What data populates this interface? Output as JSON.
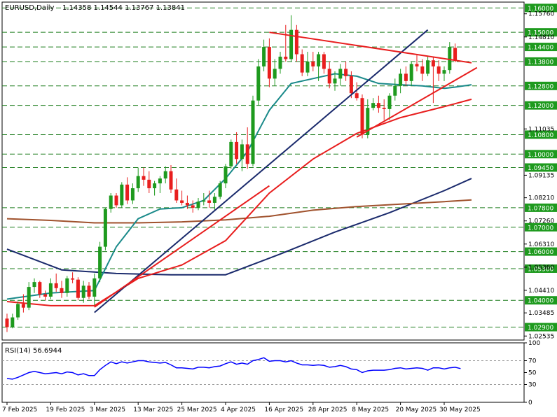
{
  "header": {
    "symbol": "EURUSD,Daily",
    "ohlc": "1.14358 1.14544 1.13767 1.13841"
  },
  "rsi_label": "RSI(14) 56.6944",
  "chart_data": [
    {
      "type": "candlestick",
      "title": "EURUSD,Daily",
      "ylim": [
        1.0237,
        1.1624
      ],
      "grid": false,
      "x_labels": [
        "7 Feb 2025",
        "19 Feb 2025",
        "3 Mar 2025",
        "13 Mar 2025",
        "25 Mar 2025",
        "4 Apr 2025",
        "16 Apr 2025",
        "28 Apr 2025",
        "8 May 2025",
        "20 May 2025",
        "30 May 2025"
      ],
      "x_label_bar_index": [
        0,
        8,
        16,
        24,
        32,
        40,
        48,
        56,
        64,
        72,
        80
      ],
      "y_tick_labels": [
        "1.15760",
        "1.14810",
        "1.11035",
        "1.09135",
        "1.08210",
        "1.07260",
        "1.06310",
        "1.05360",
        "1.04410",
        "1.03485",
        "1.02535"
      ],
      "y_tick_values": [
        1.1576,
        1.1481,
        1.11035,
        1.09135,
        1.0821,
        1.0726,
        1.0631,
        1.0536,
        1.0441,
        1.03485,
        1.02535
      ],
      "horizontal_levels": [
        {
          "label": "1.16000",
          "value": 1.16
        },
        {
          "label": "1.15000",
          "value": 1.15
        },
        {
          "label": "1.14400",
          "value": 1.144
        },
        {
          "label": "1.13800",
          "value": 1.138
        },
        {
          "label": "1.12800",
          "value": 1.128
        },
        {
          "label": "1.12000",
          "value": 1.12
        },
        {
          "label": "1.10800",
          "value": 1.108
        },
        {
          "label": "1.10000",
          "value": 1.1
        },
        {
          "label": "1.09450",
          "value": 1.0945
        },
        {
          "label": "1.07800",
          "value": 1.078
        },
        {
          "label": "1.07000",
          "value": 1.07
        },
        {
          "label": "1.06000",
          "value": 1.06
        },
        {
          "label": "1.05300",
          "value": 1.053
        },
        {
          "label": "1.04000",
          "value": 1.04
        },
        {
          "label": "1.02900",
          "value": 1.029
        }
      ],
      "candles": [
        [
          1.0325,
          1.0345,
          1.027,
          1.029
        ],
        [
          1.029,
          1.0345,
          1.0285,
          1.033
        ],
        [
          1.033,
          1.0395,
          1.032,
          1.0385
        ],
        [
          1.0385,
          1.0425,
          1.035,
          1.037
        ],
        [
          1.037,
          1.0475,
          1.036,
          1.0455
        ],
        [
          1.0455,
          1.049,
          1.043,
          1.0475
        ],
        [
          1.0475,
          1.048,
          1.041,
          1.0425
        ],
        [
          1.0425,
          1.044,
          1.04,
          1.0415
        ],
        [
          1.0415,
          1.049,
          1.0405,
          1.047
        ],
        [
          1.047,
          1.051,
          1.0435,
          1.045
        ],
        [
          1.045,
          1.048,
          1.041,
          1.043
        ],
        [
          1.043,
          1.05,
          1.0415,
          1.049
        ],
        [
          1.049,
          1.0515,
          1.047,
          1.0485
        ],
        [
          1.0485,
          1.0495,
          1.04,
          1.041
        ],
        [
          1.041,
          1.048,
          1.039,
          1.046
        ],
        [
          1.046,
          1.0475,
          1.0405,
          1.0415
        ],
        [
          1.0415,
          1.051,
          1.038,
          1.049
        ],
        [
          1.049,
          1.064,
          1.0475,
          1.062
        ],
        [
          1.062,
          1.078,
          1.0605,
          1.0775
        ],
        [
          1.0775,
          1.084,
          1.076,
          1.083
        ],
        [
          1.083,
          1.084,
          1.078,
          1.079
        ],
        [
          1.079,
          1.0885,
          1.078,
          1.0875
        ],
        [
          1.0875,
          1.0905,
          1.0795,
          1.081
        ],
        [
          1.081,
          1.088,
          1.0795,
          1.086
        ],
        [
          1.086,
          1.0945,
          1.0845,
          1.091
        ],
        [
          1.091,
          1.0945,
          1.087,
          1.0895
        ],
        [
          1.0895,
          1.093,
          1.084,
          1.086
        ],
        [
          1.086,
          1.089,
          1.083,
          1.088
        ],
        [
          1.088,
          1.091,
          1.084,
          1.09
        ],
        [
          1.09,
          1.095,
          1.088,
          1.093
        ],
        [
          1.093,
          1.0955,
          1.084,
          1.0855
        ],
        [
          1.0855,
          1.09,
          1.08,
          1.081
        ],
        [
          1.081,
          1.085,
          1.079,
          1.08
        ],
        [
          1.08,
          1.083,
          1.0775,
          1.079
        ],
        [
          1.079,
          1.081,
          1.076,
          1.078
        ],
        [
          1.078,
          1.082,
          1.077,
          1.0805
        ],
        [
          1.0805,
          1.084,
          1.079,
          1.081
        ],
        [
          1.081,
          1.085,
          1.078,
          1.08
        ],
        [
          1.08,
          1.084,
          1.077,
          1.0825
        ],
        [
          1.0825,
          1.089,
          1.0815,
          1.088
        ],
        [
          1.088,
          1.096,
          1.086,
          1.095
        ],
        [
          1.095,
          1.106,
          1.094,
          1.105
        ],
        [
          1.105,
          1.109,
          1.096,
          1.098
        ],
        [
          1.098,
          1.106,
          1.093,
          1.104
        ],
        [
          1.104,
          1.111,
          1.094,
          1.096
        ],
        [
          1.096,
          1.124,
          1.095,
          1.122
        ],
        [
          1.122,
          1.139,
          1.12,
          1.136
        ],
        [
          1.136,
          1.147,
          1.134,
          1.144
        ],
        [
          1.144,
          1.1475,
          1.1275,
          1.131
        ],
        [
          1.131,
          1.139,
          1.128,
          1.135
        ],
        [
          1.135,
          1.142,
          1.133,
          1.14
        ],
        [
          1.14,
          1.153,
          1.138,
          1.139
        ],
        [
          1.139,
          1.157,
          1.138,
          1.151
        ],
        [
          1.151,
          1.153,
          1.138,
          1.141
        ],
        [
          1.141,
          1.143,
          1.132,
          1.1335
        ],
        [
          1.1335,
          1.142,
          1.132,
          1.138
        ],
        [
          1.138,
          1.142,
          1.134,
          1.136
        ],
        [
          1.136,
          1.142,
          1.13,
          1.141
        ],
        [
          1.141,
          1.142,
          1.133,
          1.135
        ],
        [
          1.135,
          1.138,
          1.127,
          1.129
        ],
        [
          1.129,
          1.134,
          1.126,
          1.131
        ],
        [
          1.131,
          1.137,
          1.128,
          1.135
        ],
        [
          1.135,
          1.138,
          1.13,
          1.132
        ],
        [
          1.132,
          1.134,
          1.123,
          1.125
        ],
        [
          1.125,
          1.1295,
          1.122,
          1.123
        ],
        [
          1.123,
          1.1245,
          1.1065,
          1.108
        ],
        [
          1.108,
          1.1225,
          1.1065,
          1.119
        ],
        [
          1.119,
          1.123,
          1.118,
          1.121
        ],
        [
          1.121,
          1.124,
          1.117,
          1.119
        ],
        [
          1.119,
          1.1225,
          1.114,
          1.1185
        ],
        [
          1.1185,
          1.125,
          1.114,
          1.124
        ],
        [
          1.124,
          1.131,
          1.122,
          1.128
        ],
        [
          1.128,
          1.135,
          1.125,
          1.133
        ],
        [
          1.133,
          1.136,
          1.128,
          1.13
        ],
        [
          1.13,
          1.138,
          1.128,
          1.137
        ],
        [
          1.137,
          1.141,
          1.134,
          1.136
        ],
        [
          1.136,
          1.139,
          1.13,
          1.133
        ],
        [
          1.133,
          1.14,
          1.132,
          1.1385
        ],
        [
          1.1385,
          1.14,
          1.121,
          1.136
        ],
        [
          1.136,
          1.1385,
          1.13,
          1.133
        ],
        [
          1.133,
          1.136,
          1.13,
          1.1345
        ],
        [
          1.1345,
          1.146,
          1.133,
          1.144
        ],
        [
          1.1436,
          1.1454,
          1.1377,
          1.1384
        ]
      ],
      "series": [
        {
          "name": "",
          "color": "#1a2a6c",
          "x": [
            0,
            10,
            20,
            30,
            40,
            50,
            60,
            70,
            80,
            85
          ],
          "values": [
            1.061,
            1.0525,
            1.051,
            1.0505,
            1.0505,
            1.059,
            1.068,
            1.076,
            1.085,
            1.09
          ]
        },
        {
          "name": "",
          "color": "#a0522d",
          "x": [
            0,
            8,
            16,
            24,
            32,
            40,
            48,
            56,
            64,
            72,
            80,
            85
          ],
          "values": [
            1.0735,
            1.0728,
            1.0718,
            1.0718,
            1.0722,
            1.073,
            1.0745,
            1.077,
            1.0785,
            1.0795,
            1.0805,
            1.0812
          ]
        },
        {
          "name": "",
          "color": "#e81e1e",
          "x": [
            0,
            8,
            16,
            24,
            32,
            40,
            48,
            56,
            64,
            72,
            80,
            85
          ],
          "values": [
            1.0395,
            1.0378,
            1.0378,
            1.049,
            1.0545,
            1.0645,
            1.084,
            1.098,
            1.1085,
            1.115,
            1.1195,
            1.1225
          ]
        },
        {
          "name": "",
          "color": "#1a8a8a",
          "x": [
            0,
            8,
            16,
            20,
            24,
            28,
            32,
            36,
            40,
            44,
            48,
            52,
            56,
            60,
            64,
            68,
            72,
            76,
            80,
            82,
            85
          ],
          "values": [
            1.0405,
            1.043,
            1.044,
            1.062,
            1.0735,
            1.0775,
            1.078,
            1.081,
            1.09,
            1.101,
            1.118,
            1.129,
            1.131,
            1.133,
            1.132,
            1.129,
            1.1285,
            1.128,
            1.127,
            1.1275,
            1.1285
          ]
        }
      ],
      "trendlines": [
        {
          "color": "#1a2a6c",
          "points": [
            [
              16,
              1.035
            ],
            [
              77,
              1.151
            ]
          ]
        },
        {
          "color": "#e81e1e",
          "points": [
            [
              16,
              1.0372
            ],
            [
              48,
              1.087
            ]
          ]
        },
        {
          "color": "#e81e1e",
          "points": [
            [
              48,
              1.15
            ],
            [
              85,
              1.1375
            ]
          ]
        },
        {
          "color": "#e81e1e",
          "points": [
            [
              64,
              1.107
            ],
            [
              86,
              1.1355
            ]
          ]
        }
      ]
    },
    {
      "type": "line",
      "title": "RSI(14) 56.6944",
      "ylim": [
        0,
        100
      ],
      "y_tick_labels": [
        "100",
        "70",
        "50",
        "30",
        "0"
      ],
      "y_tick_values": [
        100,
        70,
        50,
        30,
        0
      ],
      "levels": [
        70,
        30
      ],
      "series": [
        {
          "name": "RSI(14)",
          "color": "#0000ff",
          "values": [
            40,
            39,
            42,
            46,
            50,
            52,
            50,
            48,
            49,
            50,
            48,
            51,
            50,
            46,
            48,
            45,
            45,
            55,
            62,
            68,
            65,
            68,
            66,
            68,
            70,
            70,
            68,
            67,
            66,
            67,
            63,
            58,
            58,
            57,
            56,
            59,
            59,
            58,
            60,
            61,
            65,
            68,
            64,
            66,
            64,
            70,
            72,
            75,
            69,
            70,
            70,
            68,
            70,
            66,
            63,
            63,
            62,
            63,
            62,
            59,
            60,
            62,
            60,
            56,
            55,
            50,
            53,
            54,
            54,
            54,
            55,
            57,
            58,
            56,
            57,
            58,
            57,
            54,
            58,
            58,
            56,
            58,
            59,
            56.69
          ]
        }
      ]
    }
  ]
}
